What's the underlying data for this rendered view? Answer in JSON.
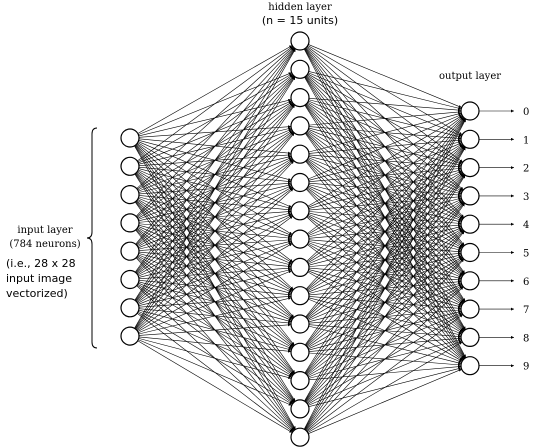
{
  "hidden_layer": {
    "title": "hidden layer",
    "subtitle": "(n = 15 units)"
  },
  "output_layer": {
    "title": "output layer",
    "labels": [
      "0",
      "1",
      "2",
      "3",
      "4",
      "5",
      "6",
      "7",
      "8",
      "9"
    ]
  },
  "input_layer": {
    "title": "input layer",
    "subtitle": "(784 neurons)",
    "note": [
      "(i.e., 28 x 28",
      "input image",
      "vectorized)"
    ]
  }
}
